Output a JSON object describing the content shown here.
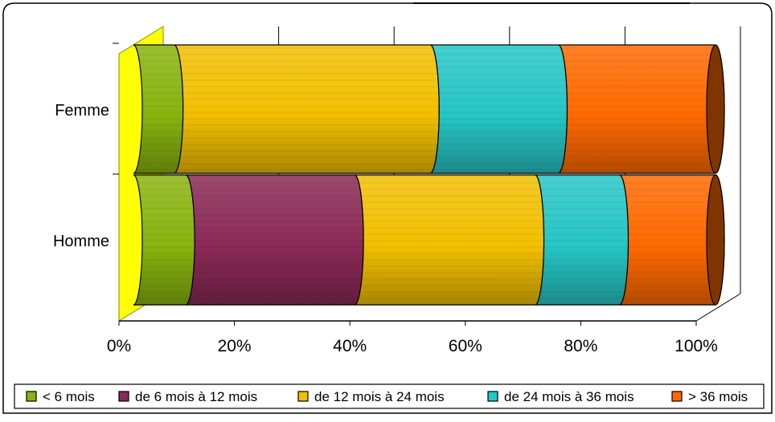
{
  "chart_data": {
    "type": "bar",
    "orientation": "horizontal",
    "stacked": true,
    "percent_stacked": true,
    "three_d": true,
    "categories": [
      "Femme",
      "Homme"
    ],
    "series": [
      {
        "name": "< 6 mois",
        "color": "#88b40e",
        "values": [
          7,
          9
        ]
      },
      {
        "name": "de 6 mois à 12 mois",
        "color": "#8b2a56",
        "values": [
          0,
          29
        ]
      },
      {
        "name": "de 12 mois à 24 mois",
        "color": "#f2c000",
        "values": [
          44,
          31
        ]
      },
      {
        "name": "de 24 mois à 36 mois",
        "color": "#26c6c6",
        "values": [
          22,
          14.5
        ]
      },
      {
        "name": "> 36 mois",
        "color": "#ff6a00",
        "values": [
          27,
          16.5
        ]
      }
    ],
    "x_ticks": [
      "0%",
      "20%",
      "40%",
      "60%",
      "80%",
      "100%"
    ],
    "xlim": [
      0,
      100
    ],
    "grid": true,
    "legend_position": "bottom",
    "floor_color": "#ffff00"
  }
}
